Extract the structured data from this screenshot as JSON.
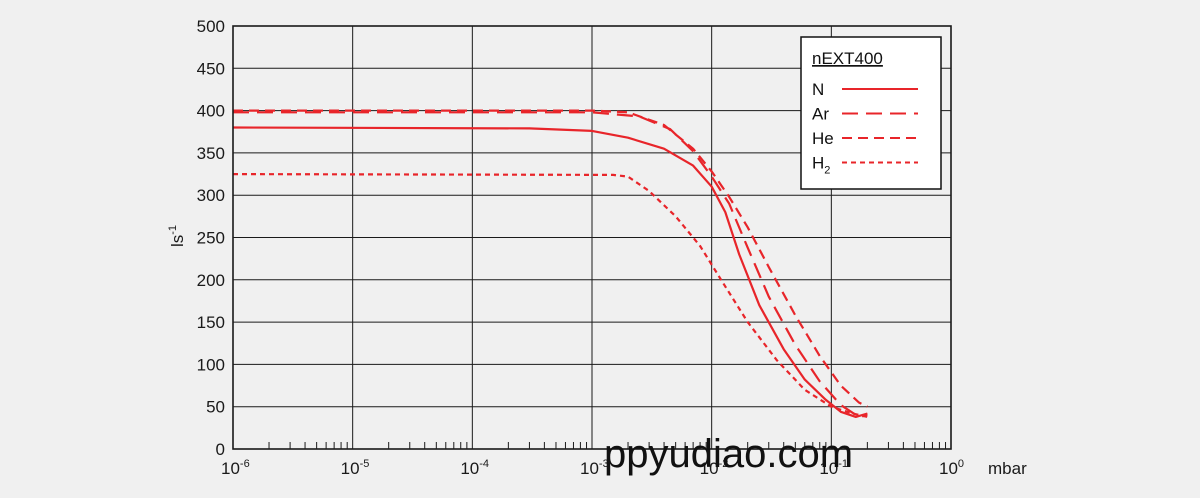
{
  "chart_data": {
    "type": "line",
    "title": "",
    "xlabel": "mbar",
    "ylabel": "ls-1",
    "xscale": "log",
    "xlim": [
      1e-06,
      1
    ],
    "ylim": [
      0,
      500
    ],
    "grid": true,
    "y_ticks": [
      0,
      50,
      100,
      150,
      200,
      250,
      300,
      350,
      400,
      450,
      500
    ],
    "x_ticks": [
      {
        "value": 1e-06,
        "base": "10",
        "exp": "-6"
      },
      {
        "value": 1e-05,
        "base": "10",
        "exp": "-5"
      },
      {
        "value": 0.0001,
        "base": "10",
        "exp": "-4"
      },
      {
        "value": 0.001,
        "base": "10",
        "exp": "-3"
      },
      {
        "value": 0.01,
        "base": "10",
        "exp": "-2"
      },
      {
        "value": 0.1,
        "base": "10",
        "exp": "-1"
      },
      {
        "value": 1,
        "base": "10",
        "exp": "0"
      }
    ],
    "legend": {
      "title": "nEXT400",
      "position": "top-right",
      "entries": [
        {
          "label": "N",
          "sub": ""
        },
        {
          "label": "Ar",
          "sub": ""
        },
        {
          "label": "He",
          "sub": ""
        },
        {
          "label": "H",
          "sub": "2"
        }
      ]
    },
    "series": [
      {
        "name": "N",
        "style": "solid",
        "x": [
          1e-06,
          0.0003,
          0.001,
          0.002,
          0.004,
          0.007,
          0.01,
          0.013,
          0.017,
          0.025,
          0.04,
          0.06,
          0.09,
          0.12,
          0.16,
          0.2
        ],
        "y": [
          380,
          379,
          376,
          368,
          355,
          335,
          310,
          280,
          230,
          170,
          118,
          82,
          58,
          44,
          38,
          42
        ]
      },
      {
        "name": "Ar",
        "style": "long-dash",
        "x": [
          1e-06,
          0.001,
          0.0025,
          0.0045,
          0.007,
          0.01,
          0.014,
          0.02,
          0.03,
          0.05,
          0.08,
          0.12,
          0.17,
          0.2
        ],
        "y": [
          398,
          398,
          393,
          378,
          352,
          322,
          290,
          238,
          180,
          123,
          80,
          52,
          38,
          40
        ]
      },
      {
        "name": "He",
        "style": "dash",
        "x": [
          1e-06,
          0.001,
          0.002,
          0.004,
          0.007,
          0.01,
          0.014,
          0.02,
          0.03,
          0.05,
          0.08,
          0.12,
          0.17,
          0.2
        ],
        "y": [
          400,
          400,
          398,
          383,
          355,
          328,
          298,
          262,
          215,
          158,
          110,
          75,
          55,
          50
        ]
      },
      {
        "name": "H2",
        "style": "short-dash",
        "x": [
          1e-06,
          0.0015,
          0.002,
          0.003,
          0.005,
          0.008,
          0.012,
          0.02,
          0.035,
          0.06,
          0.1,
          0.15,
          0.2
        ],
        "y": [
          325,
          324,
          322,
          305,
          275,
          240,
          200,
          150,
          105,
          70,
          50,
          42,
          38
        ]
      }
    ],
    "colors": {
      "series": "#e8252a",
      "grid": "#1a1a1a",
      "background": "#f0f0f0"
    },
    "watermark": "ppyudiao.com"
  }
}
